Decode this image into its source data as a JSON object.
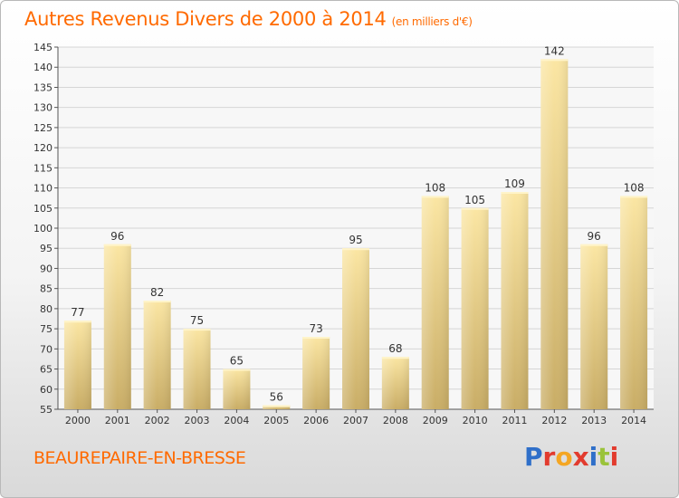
{
  "header": {
    "title": "Autres Revenus Divers de 2000 à 2014",
    "subtitle": "(en milliers d'€)"
  },
  "footer": {
    "commune": "BEAUREPAIRE-EN-BRESSE",
    "logo": "Proxiti"
  },
  "colors": {
    "accent": "#ff6a00",
    "bar_light": "#fbe6a3",
    "bar_dark": "#c9ad66",
    "logo_letters": [
      "#2f6fc9",
      "#e23b2e",
      "#f4a623",
      "#e23b2e",
      "#2f6fc9",
      "#9ac33a",
      "#e23b2e"
    ]
  },
  "chart_data": {
    "type": "bar",
    "title": "Autres Revenus Divers de 2000 à 2014",
    "subtitle": "(en milliers d'€)",
    "categories": [
      "2000",
      "2001",
      "2002",
      "2003",
      "2004",
      "2005",
      "2006",
      "2007",
      "2008",
      "2009",
      "2010",
      "2011",
      "2012",
      "2013",
      "2014"
    ],
    "values": [
      77,
      96,
      82,
      75,
      65,
      56,
      73,
      95,
      68,
      108,
      105,
      109,
      142,
      96,
      108
    ],
    "ylim": [
      55,
      145
    ],
    "yticks": [
      55,
      60,
      65,
      70,
      75,
      80,
      85,
      90,
      95,
      100,
      105,
      110,
      115,
      120,
      125,
      130,
      135,
      140,
      145
    ],
    "grid": true,
    "legend": "none"
  }
}
